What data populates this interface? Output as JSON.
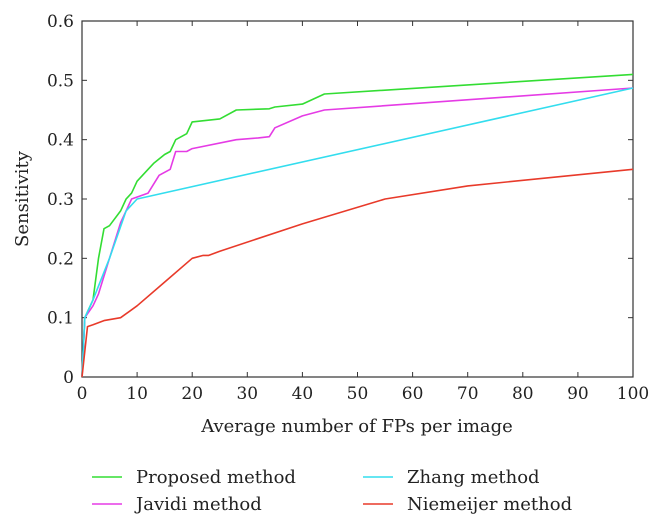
{
  "chart_data": {
    "type": "line",
    "xlabel": "Average number of FPs per image",
    "ylabel": "Sensitivity",
    "xlim": [
      0,
      100
    ],
    "ylim": [
      0,
      0.6
    ],
    "xticks": [
      0,
      10,
      20,
      30,
      40,
      50,
      60,
      70,
      80,
      90,
      100
    ],
    "yticks": [
      0,
      0.1,
      0.2,
      0.3,
      0.4,
      0.5,
      0.6
    ],
    "grid": false,
    "legend_position": "bottom",
    "series": [
      {
        "name": "Proposed method",
        "color": "#33dd33",
        "points": [
          [
            0,
            0
          ],
          [
            0.5,
            0.1
          ],
          [
            2,
            0.13
          ],
          [
            3,
            0.2
          ],
          [
            4,
            0.25
          ],
          [
            5,
            0.255
          ],
          [
            7,
            0.28
          ],
          [
            8,
            0.3
          ],
          [
            9,
            0.31
          ],
          [
            10,
            0.33
          ],
          [
            12,
            0.35
          ],
          [
            13,
            0.36
          ],
          [
            15,
            0.375
          ],
          [
            16,
            0.38
          ],
          [
            17,
            0.4
          ],
          [
            19,
            0.41
          ],
          [
            20,
            0.43
          ],
          [
            25,
            0.435
          ],
          [
            28,
            0.45
          ],
          [
            34,
            0.452
          ],
          [
            35,
            0.455
          ],
          [
            40,
            0.46
          ],
          [
            44,
            0.477
          ],
          [
            100,
            0.51
          ]
        ]
      },
      {
        "name": "Javidi method",
        "color": "#e53be5",
        "points": [
          [
            0,
            0
          ],
          [
            0.5,
            0.1
          ],
          [
            2,
            0.12
          ],
          [
            3,
            0.14
          ],
          [
            5,
            0.2
          ],
          [
            7,
            0.26
          ],
          [
            9,
            0.3
          ],
          [
            12,
            0.31
          ],
          [
            14,
            0.34
          ],
          [
            16,
            0.35
          ],
          [
            17,
            0.38
          ],
          [
            19,
            0.38
          ],
          [
            20,
            0.385
          ],
          [
            28,
            0.4
          ],
          [
            32,
            0.403
          ],
          [
            34,
            0.405
          ],
          [
            35,
            0.42
          ],
          [
            40,
            0.44
          ],
          [
            44,
            0.45
          ],
          [
            100,
            0.487
          ]
        ]
      },
      {
        "name": "Zhang method",
        "color": "#33ddee",
        "points": [
          [
            0,
            0
          ],
          [
            0.5,
            0.1
          ],
          [
            2,
            0.13
          ],
          [
            5,
            0.2
          ],
          [
            8,
            0.28
          ],
          [
            10,
            0.3
          ],
          [
            100,
            0.487
          ]
        ]
      },
      {
        "name": "Niemeijer method",
        "color": "#e83a2a",
        "points": [
          [
            0,
            0
          ],
          [
            1,
            0.085
          ],
          [
            2,
            0.088
          ],
          [
            4,
            0.095
          ],
          [
            7,
            0.1
          ],
          [
            10,
            0.12
          ],
          [
            15,
            0.16
          ],
          [
            20,
            0.2
          ],
          [
            22,
            0.205
          ],
          [
            23,
            0.205
          ],
          [
            25,
            0.212
          ],
          [
            40,
            0.258
          ],
          [
            55,
            0.3
          ],
          [
            70,
            0.322
          ],
          [
            100,
            0.35
          ]
        ]
      }
    ]
  }
}
